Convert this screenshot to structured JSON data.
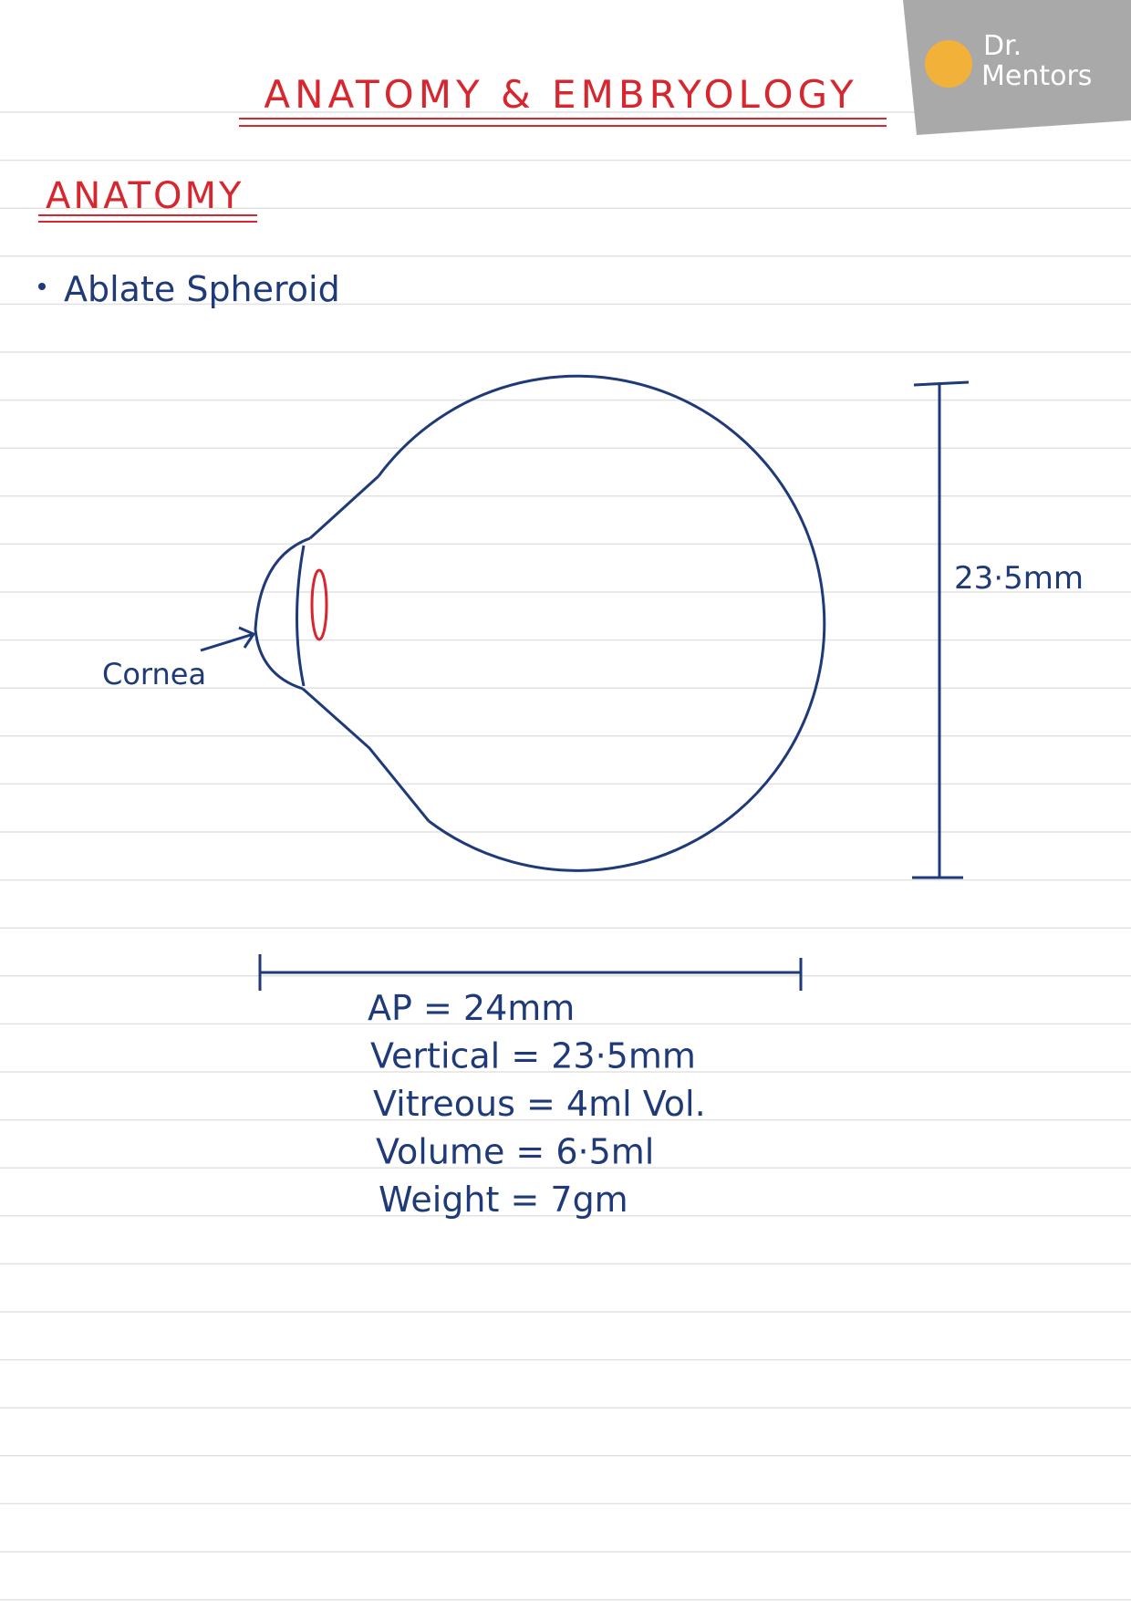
{
  "logo": {
    "line1": "Dr.",
    "line2": "Mentors"
  },
  "title": "ANATOMY & EMBRYOLOGY",
  "heading": "ANATOMY",
  "bullet": "Ablate Spheroid",
  "diagram": {
    "label_cornea": "Cornea",
    "label_vertical": "23·5mm"
  },
  "notes": [
    "AP = 24mm",
    "Vertical = 23·5mm",
    "Vitreous = 4ml Vol.",
    "Volume = 6·5ml",
    "Weight = 7gm"
  ]
}
